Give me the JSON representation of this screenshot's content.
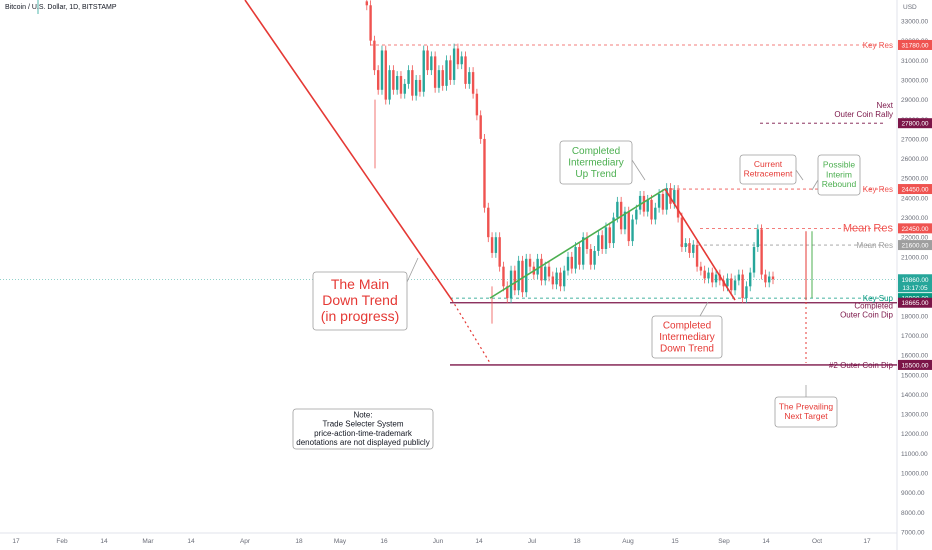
{
  "chart_data": {
    "type": "candlestick",
    "title": "Bitcoin / U.S. Dollar, 1D, BITSTAMP",
    "currency": "USD",
    "ylim": [
      6800,
      34000
    ],
    "y_ticks": [
      7000,
      8000,
      9000,
      10000,
      11000,
      12000,
      13000,
      14000,
      15000,
      16000,
      17000,
      18000,
      19000,
      20000,
      21000,
      22000,
      23000,
      24000,
      25000,
      26000,
      27000,
      28000,
      29000,
      30000,
      31000,
      32000,
      33000
    ],
    "x_ticks": [
      "17",
      "Feb",
      "14",
      "Mar",
      "14",
      "Apr",
      "18",
      "May",
      "16",
      "Jun",
      "14",
      "Jul",
      "18",
      "Aug",
      "15",
      "Sep",
      "14",
      "Oct",
      "17"
    ],
    "colors": {
      "up": "#26a69a",
      "down": "#ef5350",
      "resistance": "#ef5350",
      "target": "#7b1548",
      "support": "#089981",
      "trend_up": "#4caf50",
      "trend_down": "#e53935"
    },
    "price_labels": [
      {
        "price": 31780,
        "label": "31780.00",
        "name": "Key Res",
        "color": "#ef5350"
      },
      {
        "price": 27800,
        "label": "27800.00",
        "name": "Next\nOuter Coin Rally",
        "color": "#7b1548"
      },
      {
        "price": 24450,
        "label": "24450.00",
        "name": "Key Res",
        "color": "#ef5350"
      },
      {
        "price": 22450,
        "label": "22450.00",
        "name": "Mean Res",
        "color": "#ef5350"
      },
      {
        "price": 21600,
        "label": "21600.00",
        "name": "Mean Res",
        "color": "#9e9e9e"
      },
      {
        "price": 19860,
        "label": "19860.00",
        "name": "",
        "color": "#26a69a"
      },
      {
        "price": 19860,
        "label": "13:17:05",
        "name": "",
        "color": "#26a69a"
      },
      {
        "price": 18900,
        "label": "18900.00",
        "name": "Key Sup",
        "color": "#089981"
      },
      {
        "price": 18665,
        "label": "18665.00",
        "name": "Completed\nOuter Coin Dip",
        "color": "#7b1548"
      },
      {
        "price": 15500,
        "label": "15500.00",
        "name": "#2 Outer Coin Dip",
        "color": "#7b1548"
      }
    ],
    "annotations": [
      {
        "text": "The Main\nDown Trend\n(in progress)",
        "color": "#e53935"
      },
      {
        "text": "Completed\nIntermediary\nUp Trend",
        "color": "#4caf50"
      },
      {
        "text": "Completed\nIntermediary\nDown Trend",
        "color": "#e53935"
      },
      {
        "text": "Current\nRetracement",
        "color": "#e53935"
      },
      {
        "text": "Possible\nInterim\nRebound",
        "color": "#4caf50"
      },
      {
        "text": "The Prevailing\nNext Target",
        "color": "#e53935"
      },
      {
        "text": "Note:\nTrade Selecter System\nprice-action-time-trademark\ndenotations are not displayed publicly",
        "color": "#131722"
      }
    ],
    "candles_segments": [
      {
        "from_label": "May",
        "start_price": 34000,
        "path": [
          34000,
          33800,
          32000,
          30500,
          29500,
          31500,
          29000,
          30500,
          29500,
          30200,
          29300,
          29800,
          30500,
          29200,
          30000,
          29400,
          31500,
          30500,
          31200,
          29600,
          30500,
          29700,
          31000,
          30000,
          31600,
          30800,
          31200,
          29800,
          30400,
          29300,
          28200,
          27000,
          23500,
          22000,
          21200,
          22000,
          20500,
          19500,
          18900,
          20300,
          19300,
          20800,
          19200,
          20900,
          20500,
          20100,
          20900,
          19800,
          20500,
          20000,
          19600,
          20200,
          19500,
          20300,
          21000,
          20400,
          21500,
          20600,
          22000,
          21400,
          20600,
          21300,
          22100,
          21400,
          22500,
          21700,
          23000,
          23800,
          22400,
          23300,
          21800,
          22900,
          23400,
          24100,
          23300,
          23900,
          22900,
          23500,
          24200,
          23400,
          24500,
          23700,
          24400,
          23000,
          21500,
          21700,
          21200,
          21600,
          20500,
          20300,
          19900,
          20200,
          19700,
          20100,
          19800,
          19500,
          19900,
          19300,
          19800,
          20100,
          18900,
          19500,
          20200,
          21500,
          22400,
          20100,
          19700,
          20000,
          19860
        ]
      }
    ]
  }
}
